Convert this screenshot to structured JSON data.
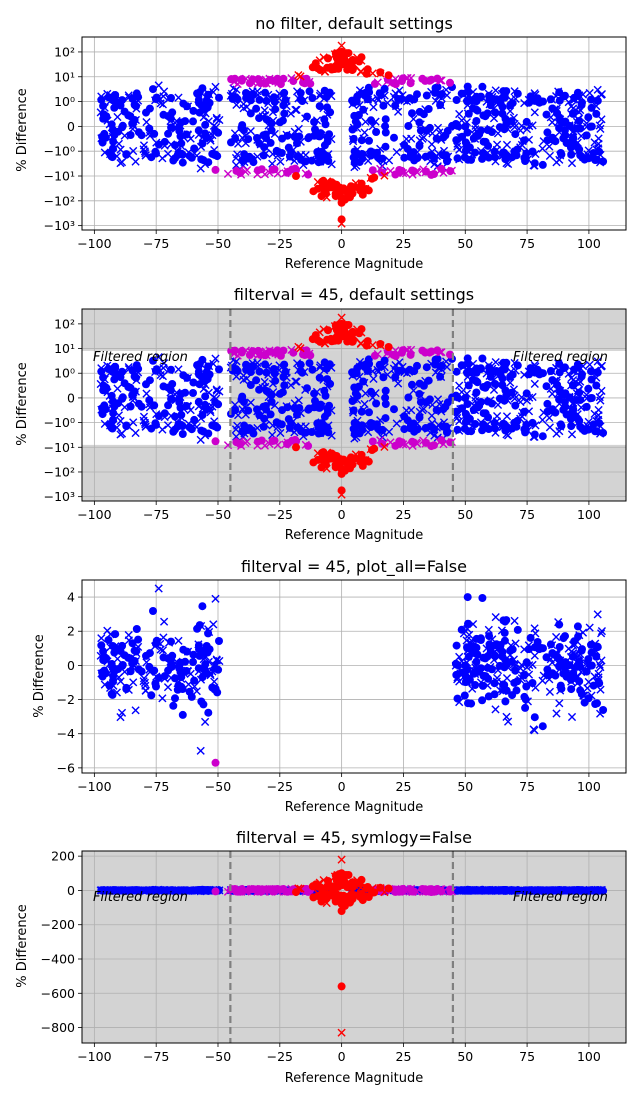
{
  "figure": {
    "background": "#ffffff"
  },
  "colors": {
    "inside": "#0000ff",
    "outside": "#ff0000",
    "boundary": "#cc00cc",
    "shade": "#d3d3d3",
    "grid": "#b0b0b0",
    "divider": "#808080"
  },
  "charts": [
    {
      "title": "no filter, default settings",
      "xlabel": "Reference Magnitude",
      "ylabel": "% Difference",
      "scale": "symlog",
      "xticks": [
        "−100",
        "−75",
        "−50",
        "−25",
        "0",
        "25",
        "50",
        "75",
        "100"
      ],
      "yticks": [
        "10²",
        "10¹",
        "10⁰",
        "0",
        "−10⁰",
        "−10¹",
        "−10²",
        "−10³"
      ]
    },
    {
      "title": "filterval = 45, default settings",
      "xlabel": "Reference Magnitude",
      "ylabel": "% Difference",
      "scale": "symlog",
      "filtered_label_left": "Filtered region",
      "filtered_label_right": "Filtered region",
      "xticks": [
        "−100",
        "−75",
        "−50",
        "−25",
        "0",
        "25",
        "50",
        "75",
        "100"
      ],
      "yticks": [
        "10²",
        "10¹",
        "10⁰",
        "0",
        "−10⁰",
        "−10¹",
        "−10²",
        "−10³"
      ]
    },
    {
      "title": "filterval = 45, plot_all=False",
      "xlabel": "Reference Magnitude",
      "ylabel": "% Difference",
      "scale": "linear",
      "xticks": [
        "−100",
        "−75",
        "−50",
        "−25",
        "0",
        "25",
        "50",
        "75",
        "100"
      ],
      "yticks": [
        "4",
        "2",
        "0",
        "−2",
        "−4",
        "−6"
      ]
    },
    {
      "title": "filterval = 45, symlogy=False",
      "xlabel": "Reference Magnitude",
      "ylabel": "% Difference",
      "scale": "linear",
      "filtered_label_left": "Filtered region",
      "filtered_label_right": "Filtered region",
      "xticks": [
        "−100",
        "−75",
        "−50",
        "−25",
        "0",
        "25",
        "50",
        "75",
        "100"
      ],
      "yticks": [
        "200",
        "0",
        "−200",
        "−400",
        "−600",
        "−800"
      ]
    }
  ],
  "chart_data": [
    {
      "type": "scatter",
      "title": "no filter, default settings",
      "xlabel": "Reference Magnitude",
      "ylabel": "% Difference",
      "xlim": [
        -105,
        115
      ],
      "y_scale": "symlog",
      "ylim": [
        -1500,
        400
      ],
      "yticks": [
        100,
        10,
        1,
        0,
        -1,
        -10,
        -100,
        -1000
      ],
      "series_style": [
        "blue circle markers",
        "blue x markers",
        "red circle markers (|x| < 20)",
        "red x markers",
        "magenta markers (15 < |x| < 45)"
      ],
      "notable_values": [
        {
          "x": 0,
          "y": 180,
          "series": "red x"
        },
        {
          "x": 0,
          "y": 100,
          "series": "red circle"
        },
        {
          "x": 0,
          "y": -80,
          "series": "red circle"
        },
        {
          "x": 0,
          "y": -560,
          "series": "red circle"
        }
      ]
    },
    {
      "type": "scatter",
      "title": "filterval = 45, default settings",
      "xlabel": "Reference Magnitude",
      "ylabel": "% Difference",
      "xlim": [
        -105,
        115
      ],
      "y_scale": "symlog",
      "ylim": [
        -1500,
        400
      ],
      "yticks": [
        100,
        10,
        1,
        0,
        -1,
        -10,
        -100,
        -1000
      ],
      "filter_value": 45,
      "shaded": [
        "x in [-45, 45]",
        "y > 8",
        "y < -8"
      ],
      "annotations": [
        "Filtered region",
        "Filtered region"
      ]
    },
    {
      "type": "scatter",
      "title": "filterval = 45, plot_all=False",
      "xlabel": "Reference Magnitude",
      "ylabel": "% Difference",
      "xlim": [
        -105,
        115
      ],
      "ylim": [
        -6.3,
        5
      ],
      "x_ranges_shown": [
        [
          -98,
          -49
        ],
        [
          46,
          106
        ]
      ],
      "notable_values": [
        {
          "x": -74,
          "y": 4.5,
          "series": "blue x"
        },
        {
          "x": -51,
          "y": -5.7,
          "series": "magenta circle"
        }
      ]
    },
    {
      "type": "scatter",
      "title": "filterval = 45, symlogy=False",
      "xlabel": "Reference Magnitude",
      "ylabel": "% Difference",
      "xlim": [
        -105,
        115
      ],
      "ylim": [
        -890,
        230
      ],
      "yticks": [
        200,
        0,
        -200,
        -400,
        -600,
        -800
      ],
      "filter_value": 45,
      "shaded": [
        "entire plot area"
      ],
      "annotations": [
        "Filtered region",
        "Filtered region"
      ],
      "notable_values": [
        {
          "x": 0,
          "y": 180,
          "series": "red x"
        },
        {
          "x": 0,
          "y": -560,
          "series": "red circle"
        },
        {
          "x": 0,
          "y": -830,
          "series": "red x"
        }
      ]
    }
  ]
}
